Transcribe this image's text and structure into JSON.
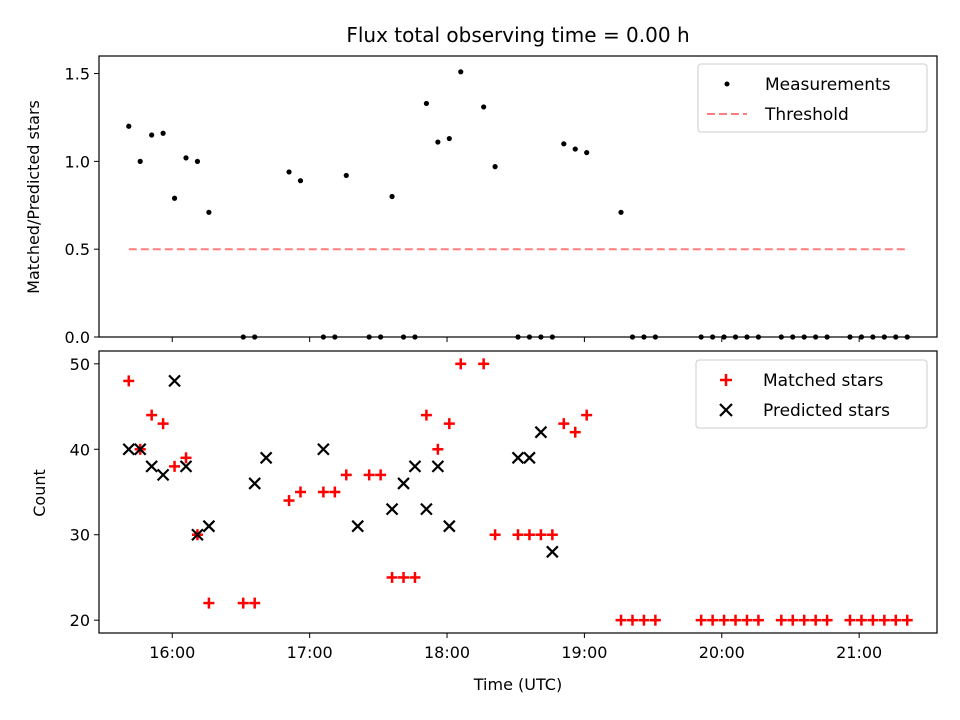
{
  "chart_data": [
    {
      "type": "scatter",
      "title": "Flux total observing time = 0.00 h",
      "xlabel": "",
      "ylabel": "Matched/Predicted stars",
      "ylim": [
        0,
        1.6
      ],
      "yticks": [
        "0.0",
        "0.5",
        "1.0",
        "1.5"
      ],
      "grid": false,
      "legend_position": "top-right",
      "series": [
        {
          "name": "Measurements",
          "kind": "scatter",
          "color": "#000000",
          "x": [
            "15:41",
            "15:46",
            "15:51",
            "15:56",
            "16:01",
            "16:06",
            "16:11",
            "16:16",
            "16:31",
            "16:36",
            "16:51",
            "16:56",
            "17:06",
            "17:11",
            "17:16",
            "17:26",
            "17:31",
            "17:36",
            "17:41",
            "17:46",
            "17:51",
            "17:56",
            "18:01",
            "18:06",
            "18:16",
            "18:21",
            "18:31",
            "18:36",
            "18:41",
            "18:46",
            "18:51",
            "18:56",
            "19:01",
            "19:16",
            "19:21",
            "19:26",
            "19:31",
            "19:51",
            "19:56",
            "20:01",
            "20:06",
            "20:11",
            "20:16",
            "20:26",
            "20:31",
            "20:36",
            "20:41",
            "20:46",
            "20:56",
            "21:01",
            "21:06",
            "21:11",
            "21:16",
            "21:21"
          ],
          "y": [
            1.2,
            1.0,
            1.15,
            1.16,
            0.79,
            1.02,
            1.0,
            0.71,
            0.0,
            0.0,
            0.94,
            0.89,
            0.0,
            0.0,
            0.92,
            0.0,
            0.0,
            0.8,
            0.0,
            0.0,
            1.33,
            1.11,
            1.13,
            1.51,
            1.31,
            0.97,
            0.0,
            0.0,
            0.0,
            0.0,
            1.1,
            1.07,
            1.05,
            0.71,
            0.0,
            0.0,
            0.0,
            0.0,
            0.0,
            0.0,
            0.0,
            0.0,
            0.0,
            0.0,
            0.0,
            0.0,
            0.0,
            0.0,
            0.0,
            0.0,
            0.0,
            0.0,
            0.0,
            0.0
          ]
        },
        {
          "name": "Threshold",
          "kind": "line",
          "style": "dashed",
          "color": "#ff7f7f",
          "x": [
            "15:41",
            "21:21"
          ],
          "y": [
            0.5,
            0.5
          ]
        }
      ]
    },
    {
      "type": "scatter",
      "title": "",
      "xlabel": "Time (UTC)",
      "ylabel": "Count",
      "ylim": [
        18.5,
        51.5
      ],
      "yticks": [
        "20",
        "30",
        "40",
        "50"
      ],
      "xticks": [
        "16:00",
        "17:00",
        "18:00",
        "19:00",
        "20:00",
        "21:00"
      ],
      "grid": false,
      "legend_position": "top-right",
      "series": [
        {
          "name": "Matched stars",
          "marker": "plus",
          "color": "#ff0000",
          "x": [
            "15:41",
            "15:46",
            "15:51",
            "15:56",
            "16:01",
            "16:06",
            "16:11",
            "16:16",
            "16:31",
            "16:36",
            "16:51",
            "16:56",
            "17:06",
            "17:11",
            "17:16",
            "17:26",
            "17:31",
            "17:36",
            "17:41",
            "17:46",
            "17:51",
            "17:56",
            "18:01",
            "18:06",
            "18:16",
            "18:21",
            "18:31",
            "18:36",
            "18:41",
            "18:46",
            "18:51",
            "18:56",
            "19:01",
            "19:16",
            "19:21",
            "19:26",
            "19:31",
            "19:51",
            "19:56",
            "20:01",
            "20:06",
            "20:11",
            "20:16",
            "20:26",
            "20:31",
            "20:36",
            "20:41",
            "20:46",
            "20:56",
            "21:01",
            "21:06",
            "21:11",
            "21:16",
            "21:21"
          ],
          "y": [
            48,
            40,
            44,
            43,
            38,
            39,
            30,
            22,
            22,
            22,
            34,
            35,
            35,
            35,
            37,
            37,
            37,
            25,
            25,
            25,
            44,
            40,
            43,
            50,
            50,
            30,
            30,
            30,
            30,
            30,
            43,
            42,
            44,
            20,
            20,
            20,
            20,
            20,
            20,
            20,
            20,
            20,
            20,
            20,
            20,
            20,
            20,
            20,
            20,
            20,
            20,
            20,
            20,
            20
          ]
        },
        {
          "name": "Predicted stars",
          "marker": "x",
          "color": "#000000",
          "x": [
            "15:41",
            "15:46",
            "15:51",
            "15:56",
            "16:01",
            "16:06",
            "16:11",
            "16:16",
            "16:36",
            "16:41",
            "17:06",
            "17:21",
            "17:36",
            "17:41",
            "17:46",
            "17:51",
            "17:56",
            "18:01",
            "18:31",
            "18:36",
            "18:41",
            "18:46"
          ],
          "y": [
            40,
            40,
            38,
            37,
            48,
            38,
            30,
            31,
            36,
            39,
            40,
            31,
            33,
            36,
            38,
            33,
            38,
            31,
            39,
            39,
            42,
            28
          ]
        }
      ]
    }
  ]
}
